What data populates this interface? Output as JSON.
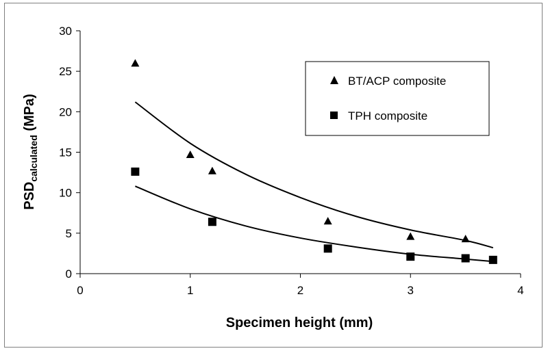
{
  "chart_data": {
    "type": "scatter",
    "title": "",
    "xlabel": "Specimen height (mm)",
    "ylabel_main": "PSD",
    "ylabel_sub": "calculated",
    "ylabel_unit": " (MPa)",
    "xlim": [
      0,
      4
    ],
    "ylim": [
      0,
      30
    ],
    "x_ticks": [
      0,
      1,
      2,
      3,
      4
    ],
    "y_ticks": [
      0,
      5,
      10,
      15,
      20,
      25,
      30
    ],
    "grid": false,
    "legend_position": "top-right",
    "series": [
      {
        "name": "BT/ACP composite",
        "marker": "triangle",
        "color": "#000000",
        "points": [
          {
            "x": 0.5,
            "y": 26.0
          },
          {
            "x": 1.0,
            "y": 14.7
          },
          {
            "x": 1.2,
            "y": 12.7
          },
          {
            "x": 2.25,
            "y": 6.5
          },
          {
            "x": 3.0,
            "y": 4.6
          },
          {
            "x": 3.5,
            "y": 4.3
          }
        ],
        "trendline": [
          {
            "x": 0.5,
            "y": 21.2
          },
          {
            "x": 1.0,
            "y": 16.1
          },
          {
            "x": 1.5,
            "y": 12.3
          },
          {
            "x": 2.0,
            "y": 9.4
          },
          {
            "x": 2.5,
            "y": 7.1
          },
          {
            "x": 3.0,
            "y": 5.4
          },
          {
            "x": 3.5,
            "y": 4.1
          },
          {
            "x": 3.75,
            "y": 3.2
          }
        ]
      },
      {
        "name": "TPH composite",
        "marker": "square",
        "color": "#000000",
        "points": [
          {
            "x": 0.5,
            "y": 12.6
          },
          {
            "x": 1.2,
            "y": 6.4
          },
          {
            "x": 2.25,
            "y": 3.1
          },
          {
            "x": 3.0,
            "y": 2.1
          },
          {
            "x": 3.5,
            "y": 1.9
          },
          {
            "x": 3.75,
            "y": 1.7
          }
        ],
        "trendline": [
          {
            "x": 0.5,
            "y": 10.8
          },
          {
            "x": 1.0,
            "y": 8.0
          },
          {
            "x": 1.5,
            "y": 5.9
          },
          {
            "x": 2.0,
            "y": 4.4
          },
          {
            "x": 2.5,
            "y": 3.3
          },
          {
            "x": 3.0,
            "y": 2.4
          },
          {
            "x": 3.5,
            "y": 1.8
          },
          {
            "x": 3.75,
            "y": 1.5
          }
        ]
      }
    ]
  }
}
